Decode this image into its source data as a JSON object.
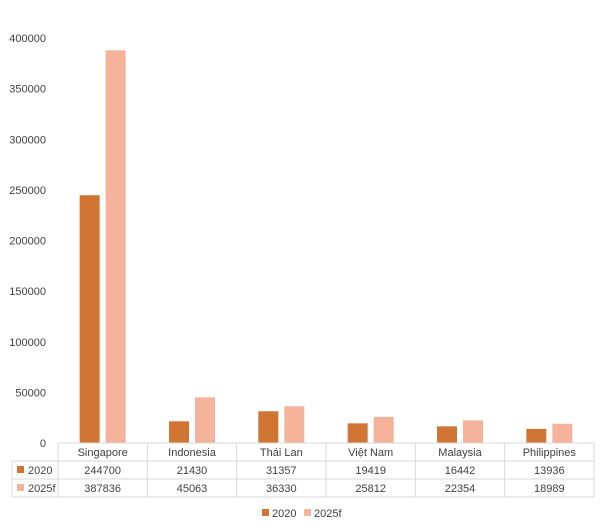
{
  "chart_data": {
    "type": "bar",
    "categories": [
      "Singapore",
      "Indonesia",
      "Thái Lan",
      "Việt Nam",
      "Malaysia",
      "Philippines"
    ],
    "series": [
      {
        "name": "2020",
        "values": [
          244700,
          21430,
          31357,
          19419,
          16442,
          13936
        ],
        "color": "#d07534"
      },
      {
        "name": "2025f",
        "values": [
          387836,
          45063,
          36330,
          25812,
          22354,
          18989
        ],
        "color": "#f4b39a"
      }
    ],
    "ylim": [
      0,
      400000
    ],
    "yticks": [
      "0",
      "50000",
      "100000",
      "150000",
      "200000",
      "250000",
      "300000",
      "350000",
      "400000"
    ],
    "grid": false,
    "legend": "bottom-center",
    "data_table": true
  }
}
